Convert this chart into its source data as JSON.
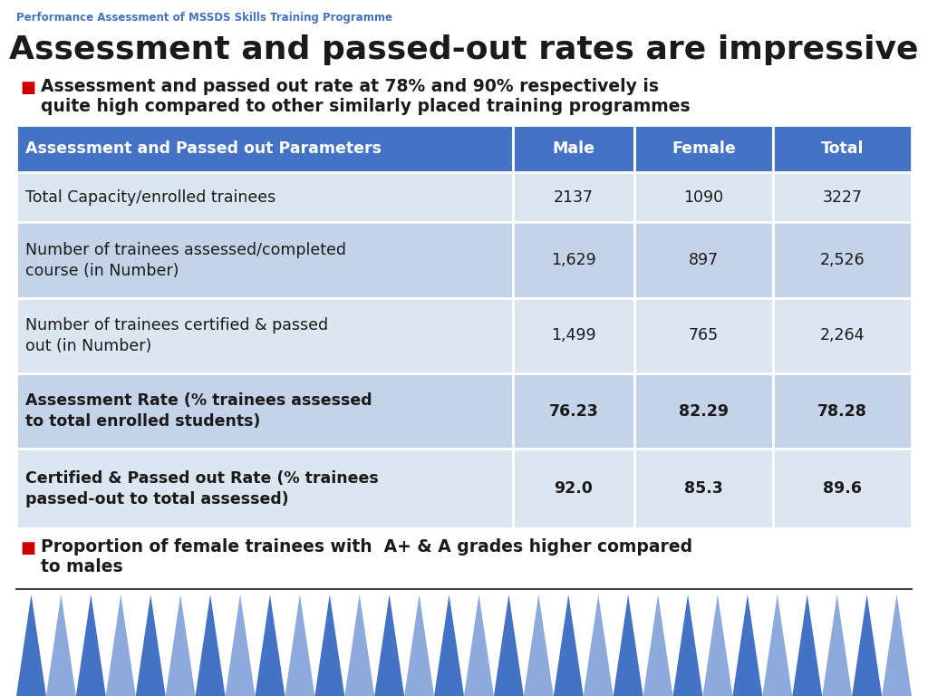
{
  "supertitle": "Performance Assessment of MSSDS Skills Training Programme",
  "title": "Assessment and passed-out rates are impressive",
  "bullet1_line1": "Assessment and passed out rate at 78% and 90% respectively is",
  "bullet1_line2": "quite high compared to other similarly placed training programmes",
  "bullet2_line1": "Proportion of female trainees with  A+ & A grades higher compared",
  "bullet2_line2": "to males",
  "table_header": [
    "Assessment and Passed out Parameters",
    "Male",
    "Female",
    "Total"
  ],
  "table_rows": [
    [
      "Total Capacity/enrolled trainees",
      "2137",
      "1090",
      "3227"
    ],
    [
      "Number of trainees assessed/completed\ncourse (in Number)",
      "1,629",
      "897",
      "2,526"
    ],
    [
      "Number of trainees certified & passed\nout (in Number)",
      "1,499",
      "765",
      "2,264"
    ],
    [
      "Assessment Rate (% trainees assessed\nto total enrolled students)",
      "76.23",
      "82.29",
      "78.28"
    ],
    [
      "Certified & Passed out Rate (% trainees\npassed-out to total assessed)",
      "92.0",
      "85.3",
      "89.6"
    ]
  ],
  "header_bg": "#4472C4",
  "header_fg": "#FFFFFF",
  "row_bg_odd": "#DCE6F1",
  "row_bg_even": "#C5D3E8",
  "bullet_color": "#CC0000",
  "supertitle_color": "#4472C4",
  "title_color": "#1A1A1A",
  "bold_rows": [
    3,
    4
  ],
  "tri_color1": "#4472C4",
  "tri_color2": "#8EA9DB",
  "background_color": "#FFFFFF",
  "sep_color": "#444444"
}
